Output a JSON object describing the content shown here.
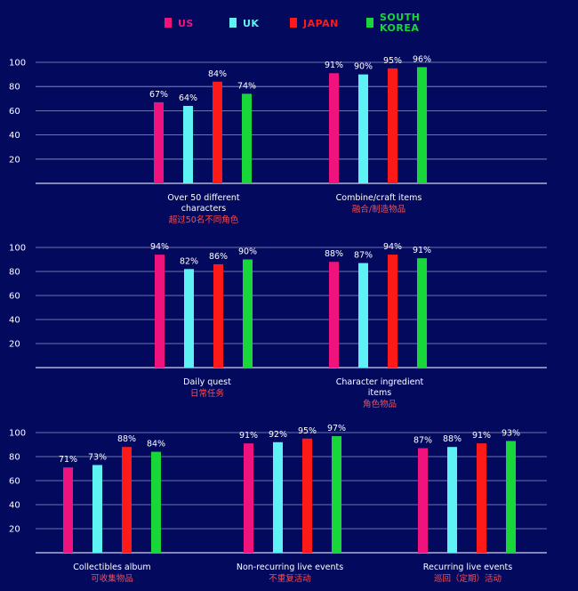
{
  "legend": [
    {
      "label": "US",
      "color": "#f0127d"
    },
    {
      "label": "UK",
      "color": "#5ef2f5"
    },
    {
      "label": "JAPAN",
      "color": "#ff1a1a"
    },
    {
      "label": "SOUTH KOREA",
      "label_lines": [
        "SOUTH",
        "KOREA"
      ],
      "color": "#19d63a"
    }
  ],
  "chart_data": [
    {
      "type": "bar",
      "yticks": [
        20,
        40,
        60,
        80,
        100
      ],
      "ylim": [
        0,
        100
      ],
      "series_names": [
        "US",
        "UK",
        "JAPAN",
        "SOUTH KOREA"
      ],
      "groups": [
        {
          "label_en": "Over 50 different characters",
          "label_en_lines": [
            "Over 50 different",
            "characters"
          ],
          "label_zh": "超过50名不同角色",
          "values": [
            67,
            64,
            84,
            74
          ]
        },
        {
          "label_en": "Combine/craft items",
          "label_en_lines": [
            "Combine/craft items"
          ],
          "label_zh": "融合/制造物品",
          "values": [
            91,
            90,
            95,
            96
          ]
        }
      ]
    },
    {
      "type": "bar",
      "yticks": [
        20,
        40,
        60,
        80,
        100
      ],
      "ylim": [
        0,
        100
      ],
      "series_names": [
        "US",
        "UK",
        "JAPAN",
        "SOUTH KOREA"
      ],
      "groups": [
        {
          "label_en": "Daily quest",
          "label_en_lines": [
            "Daily quest"
          ],
          "label_zh": "日常任务",
          "values": [
            94,
            82,
            86,
            90
          ]
        },
        {
          "label_en": "Character ingredient items",
          "label_en_lines": [
            "Character ingredient",
            "items"
          ],
          "label_zh": "角色物品",
          "values": [
            88,
            87,
            94,
            91
          ]
        }
      ]
    },
    {
      "type": "bar",
      "yticks": [
        20,
        40,
        60,
        80,
        100
      ],
      "ylim": [
        0,
        100
      ],
      "series_names": [
        "US",
        "UK",
        "JAPAN",
        "SOUTH KOREA"
      ],
      "groups": [
        {
          "label_en": "Collectibles album",
          "label_en_lines": [
            "Collectibles album"
          ],
          "label_zh": "可收集物品",
          "values": [
            71,
            73,
            88,
            84
          ]
        },
        {
          "label_en": "Non-recurring live events",
          "label_en_lines": [
            "Non-recurring live events"
          ],
          "label_zh": "不重复活动",
          "values": [
            91,
            92,
            95,
            97
          ]
        },
        {
          "label_en": "Recurring live events",
          "label_en_lines": [
            "Recurring live events"
          ],
          "label_zh": "巡回（定期）活动",
          "values": [
            87,
            88,
            91,
            93
          ]
        }
      ]
    }
  ]
}
